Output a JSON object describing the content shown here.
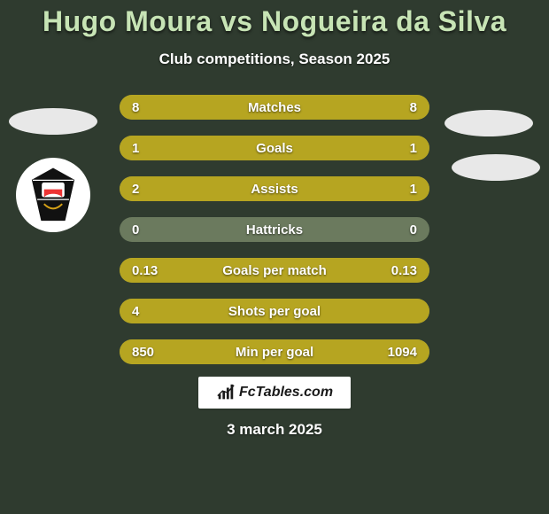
{
  "background_color": "#2f3b2f",
  "title": {
    "text": "Hugo Moura vs Nogueira da Silva",
    "color": "#c7e4b5",
    "fontsize": 32
  },
  "subtitle": {
    "text": "Club competitions, Season 2025",
    "color": "#ffffff",
    "fontsize": 17
  },
  "date": {
    "text": "3 march 2025",
    "fontsize": 17
  },
  "brand": {
    "text": "FcTables.com"
  },
  "bar_style": {
    "track_color": "#6b7a5e",
    "fill_color": "#b6a521",
    "height": 28,
    "radius": 14,
    "label_fontsize": 15,
    "value_fontsize": 15
  },
  "rows": [
    {
      "label": "Matches",
      "left": "8",
      "right": "8",
      "fill_left_pct": 50,
      "fill_right_pct": 50
    },
    {
      "label": "Goals",
      "left": "1",
      "right": "1",
      "fill_left_pct": 50,
      "fill_right_pct": 50
    },
    {
      "label": "Assists",
      "left": "2",
      "right": "1",
      "fill_left_pct": 66,
      "fill_right_pct": 34
    },
    {
      "label": "Hattricks",
      "left": "0",
      "right": "0",
      "fill_left_pct": 0,
      "fill_right_pct": 0
    },
    {
      "label": "Goals per match",
      "left": "0.13",
      "right": "0.13",
      "fill_left_pct": 50,
      "fill_right_pct": 50
    },
    {
      "label": "Shots per goal",
      "left": "4",
      "right": "",
      "fill_left_pct": 100,
      "fill_right_pct": 0
    },
    {
      "label": "Min per goal",
      "left": "850",
      "right": "1094",
      "fill_left_pct": 44,
      "fill_right_pct": 56
    }
  ]
}
